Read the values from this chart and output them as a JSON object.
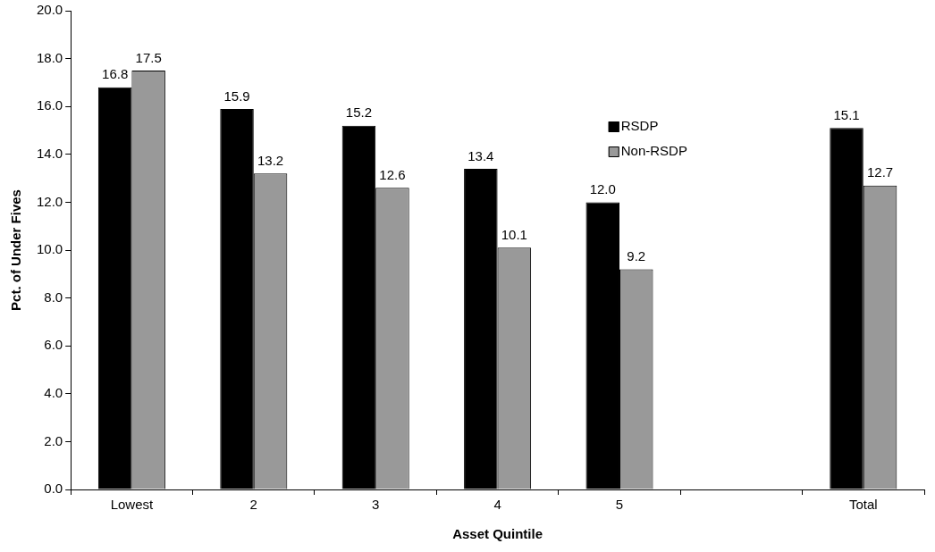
{
  "chart_data": {
    "type": "bar",
    "xlabel": "Asset Quintile",
    "ylabel": "Pct. of Under Fives",
    "categories": [
      "Lowest",
      "2",
      "3",
      "4",
      "5",
      null,
      "Total"
    ],
    "series": [
      {
        "name": "RSDP",
        "color": "#000000",
        "values": [
          16.8,
          15.9,
          15.2,
          13.4,
          12.0,
          null,
          15.1
        ],
        "value_labels": [
          "16.8",
          "15.9",
          "15.2",
          "13.4",
          "12.0",
          null,
          "15.1"
        ]
      },
      {
        "name": "Non-RSDP",
        "color": "#999999",
        "values": [
          17.5,
          13.2,
          12.6,
          10.1,
          9.2,
          null,
          12.7
        ],
        "value_labels": [
          "17.5",
          "13.2",
          "12.6",
          "10.1",
          "9.2",
          null,
          "12.7"
        ]
      }
    ],
    "ylim": [
      0,
      20
    ],
    "yticks": [
      {
        "value": 0,
        "label": "0.0"
      },
      {
        "value": 2,
        "label": "2.0"
      },
      {
        "value": 4,
        "label": "4.0"
      },
      {
        "value": 6,
        "label": "6.0"
      },
      {
        "value": 8,
        "label": "8.0"
      },
      {
        "value": 10,
        "label": "10.0"
      },
      {
        "value": 12,
        "label": "12.0"
      },
      {
        "value": 14,
        "label": "14.0"
      },
      {
        "value": 16,
        "label": "16.0"
      },
      {
        "value": 18,
        "label": "18.0"
      },
      {
        "value": 20,
        "label": "20.0"
      }
    ],
    "grid": false,
    "legend": "top right"
  }
}
